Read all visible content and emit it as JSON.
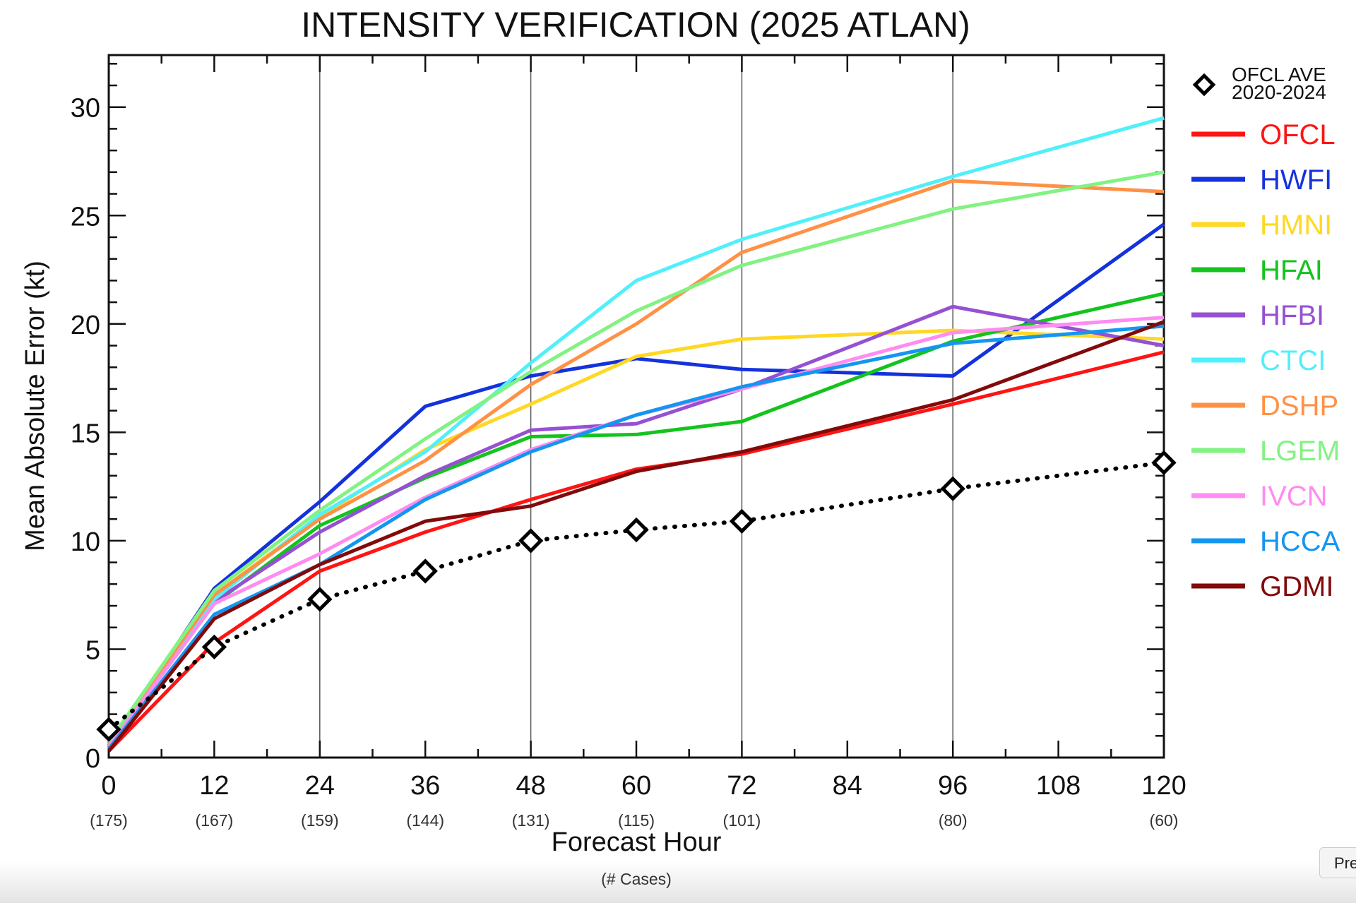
{
  "chart_data": {
    "type": "line",
    "title": "INTENSITY VERIFICATION (2025 ATLAN)",
    "xlabel": "Forecast Hour",
    "xlabel_sub": "(# Cases)",
    "ylabel": "Mean Absolute Error (kt)",
    "x": [
      0,
      12,
      24,
      36,
      48,
      60,
      72,
      96,
      120
    ],
    "x_ticks": [
      0,
      12,
      24,
      36,
      48,
      60,
      72,
      84,
      96,
      108,
      120
    ],
    "cases": [
      {
        "hour": 0,
        "label": "(175)"
      },
      {
        "hour": 12,
        "label": "(167)"
      },
      {
        "hour": 24,
        "label": "(159)"
      },
      {
        "hour": 36,
        "label": "(144)"
      },
      {
        "hour": 48,
        "label": "(131)"
      },
      {
        "hour": 60,
        "label": "(115)"
      },
      {
        "hour": 72,
        "label": "(101)"
      },
      {
        "hour": 96,
        "label": "(80)"
      },
      {
        "hour": 120,
        "label": "(60)"
      }
    ],
    "y_ticks": [
      0,
      5,
      10,
      15,
      20,
      25,
      30
    ],
    "xlim": [
      0,
      120
    ],
    "ylim": [
      0,
      32.4
    ],
    "vertical_gridlines_at": [
      24,
      48,
      72,
      96
    ],
    "legend_position": "right",
    "reference": {
      "name": "OFCL AVE\n2020-2024",
      "line1": "OFCL AVE",
      "line2": "2020-2024",
      "values": [
        1.3,
        5.1,
        7.3,
        8.6,
        10.0,
        10.5,
        10.9,
        12.4,
        13.6
      ],
      "style": "dotted-diamond",
      "color": "#000000"
    },
    "series": [
      {
        "name": "OFCL",
        "color": "#ff1414",
        "values": [
          0.3,
          5.3,
          8.6,
          10.4,
          11.9,
          13.3,
          14.0,
          16.3,
          18.7
        ]
      },
      {
        "name": "HWFI",
        "color": "#1432dc",
        "values": [
          0.5,
          7.8,
          11.8,
          16.2,
          17.6,
          18.4,
          17.9,
          17.6,
          24.6
        ]
      },
      {
        "name": "HMNI",
        "color": "#ffd823",
        "values": [
          0.6,
          7.5,
          11.1,
          14.2,
          16.3,
          18.5,
          19.3,
          19.7,
          19.3
        ]
      },
      {
        "name": "HFAI",
        "color": "#14c31e",
        "values": [
          0.5,
          7.1,
          10.7,
          12.9,
          14.8,
          14.9,
          15.5,
          19.2,
          21.4
        ]
      },
      {
        "name": "HFBI",
        "color": "#9650d2",
        "values": [
          0.5,
          7.2,
          10.4,
          13.0,
          15.1,
          15.4,
          17.0,
          20.8,
          19.0
        ]
      },
      {
        "name": "CTCI",
        "color": "#50f0fa",
        "values": [
          0.6,
          7.3,
          11.2,
          14.1,
          18.2,
          22.0,
          23.9,
          26.8,
          29.5
        ]
      },
      {
        "name": "DSHP",
        "color": "#ff9146",
        "values": [
          0.6,
          7.5,
          11.0,
          13.7,
          17.2,
          20.0,
          23.3,
          26.6,
          26.1
        ]
      },
      {
        "name": "LGEM",
        "color": "#82f282",
        "values": [
          0.7,
          7.7,
          11.4,
          14.7,
          17.8,
          20.6,
          22.7,
          25.3,
          27.0
        ]
      },
      {
        "name": "IVCN",
        "color": "#ff8cf0",
        "values": [
          0.5,
          7.1,
          9.4,
          12.0,
          14.2,
          15.8,
          17.0,
          19.6,
          20.3
        ]
      },
      {
        "name": "HCCA",
        "color": "#1496f0",
        "values": [
          0.4,
          6.6,
          8.9,
          11.9,
          14.1,
          15.8,
          17.1,
          19.1,
          19.9
        ]
      },
      {
        "name": "GDMI",
        "color": "#820a0a",
        "values": [
          0.3,
          6.4,
          8.9,
          10.9,
          11.6,
          13.2,
          14.1,
          16.5,
          20.1
        ]
      }
    ]
  },
  "ui": {
    "pre_button": "Pre"
  }
}
